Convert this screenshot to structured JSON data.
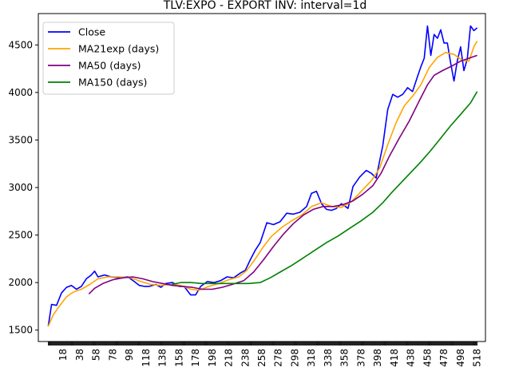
{
  "chart_data": {
    "type": "line",
    "title": "TLV:EXPO - EXPORT INV: interval=1d",
    "xlabel": "",
    "ylabel": "",
    "xlim": [
      -12,
      528
    ],
    "ylim": [
      1380,
      4830
    ],
    "x_ticks": [
      18,
      38,
      58,
      78,
      98,
      118,
      138,
      158,
      178,
      198,
      218,
      238,
      258,
      278,
      298,
      318,
      338,
      358,
      378,
      398,
      418,
      438,
      458,
      478,
      498,
      518
    ],
    "y_ticks": [
      1500,
      2000,
      2500,
      3000,
      3500,
      4000,
      4500
    ],
    "grid": false,
    "legend_position": "top-left",
    "series": [
      {
        "name": "Close",
        "color": "#0000ff",
        "points": [
          [
            0,
            1540
          ],
          [
            4,
            1770
          ],
          [
            10,
            1760
          ],
          [
            16,
            1890
          ],
          [
            22,
            1950
          ],
          [
            28,
            1970
          ],
          [
            34,
            1930
          ],
          [
            40,
            1960
          ],
          [
            46,
            2040
          ],
          [
            52,
            2080
          ],
          [
            56,
            2120
          ],
          [
            60,
            2060
          ],
          [
            68,
            2080
          ],
          [
            76,
            2060
          ],
          [
            86,
            2050
          ],
          [
            96,
            2060
          ],
          [
            104,
            2010
          ],
          [
            110,
            1970
          ],
          [
            116,
            1960
          ],
          [
            122,
            1960
          ],
          [
            130,
            1980
          ],
          [
            136,
            1950
          ],
          [
            142,
            1990
          ],
          [
            150,
            2000
          ],
          [
            158,
            1960
          ],
          [
            164,
            1960
          ],
          [
            172,
            1870
          ],
          [
            178,
            1870
          ],
          [
            184,
            1960
          ],
          [
            192,
            2010
          ],
          [
            200,
            2000
          ],
          [
            208,
            2020
          ],
          [
            216,
            2060
          ],
          [
            224,
            2050
          ],
          [
            232,
            2100
          ],
          [
            238,
            2130
          ],
          [
            244,
            2240
          ],
          [
            250,
            2340
          ],
          [
            256,
            2420
          ],
          [
            264,
            2630
          ],
          [
            272,
            2610
          ],
          [
            280,
            2640
          ],
          [
            288,
            2730
          ],
          [
            296,
            2720
          ],
          [
            304,
            2740
          ],
          [
            312,
            2800
          ],
          [
            318,
            2940
          ],
          [
            324,
            2960
          ],
          [
            330,
            2830
          ],
          [
            336,
            2770
          ],
          [
            342,
            2760
          ],
          [
            348,
            2780
          ],
          [
            354,
            2830
          ],
          [
            362,
            2780
          ],
          [
            368,
            3010
          ],
          [
            376,
            3110
          ],
          [
            384,
            3180
          ],
          [
            390,
            3150
          ],
          [
            396,
            3100
          ],
          [
            404,
            3440
          ],
          [
            410,
            3820
          ],
          [
            416,
            3980
          ],
          [
            422,
            3950
          ],
          [
            428,
            3980
          ],
          [
            434,
            4050
          ],
          [
            440,
            4010
          ],
          [
            446,
            4170
          ],
          [
            450,
            4270
          ],
          [
            454,
            4360
          ],
          [
            458,
            4700
          ],
          [
            462,
            4390
          ],
          [
            466,
            4610
          ],
          [
            470,
            4570
          ],
          [
            474,
            4660
          ],
          [
            478,
            4520
          ],
          [
            482,
            4520
          ],
          [
            486,
            4310
          ],
          [
            490,
            4120
          ],
          [
            494,
            4330
          ],
          [
            498,
            4480
          ],
          [
            502,
            4230
          ],
          [
            506,
            4350
          ],
          [
            510,
            4700
          ],
          [
            514,
            4650
          ],
          [
            518,
            4680
          ]
        ]
      },
      {
        "name": "MA21exp (days)",
        "color": "#ffa500",
        "points": [
          [
            0,
            1540
          ],
          [
            6,
            1660
          ],
          [
            14,
            1760
          ],
          [
            22,
            1850
          ],
          [
            30,
            1900
          ],
          [
            40,
            1930
          ],
          [
            50,
            1980
          ],
          [
            60,
            2040
          ],
          [
            72,
            2060
          ],
          [
            86,
            2060
          ],
          [
            100,
            2050
          ],
          [
            112,
            2010
          ],
          [
            124,
            1980
          ],
          [
            136,
            1970
          ],
          [
            148,
            1980
          ],
          [
            160,
            1970
          ],
          [
            172,
            1930
          ],
          [
            182,
            1920
          ],
          [
            194,
            1960
          ],
          [
            206,
            1990
          ],
          [
            218,
            2030
          ],
          [
            230,
            2060
          ],
          [
            240,
            2130
          ],
          [
            250,
            2250
          ],
          [
            260,
            2380
          ],
          [
            270,
            2490
          ],
          [
            282,
            2580
          ],
          [
            294,
            2650
          ],
          [
            306,
            2710
          ],
          [
            318,
            2800
          ],
          [
            330,
            2840
          ],
          [
            342,
            2800
          ],
          [
            354,
            2790
          ],
          [
            366,
            2850
          ],
          [
            378,
            2960
          ],
          [
            390,
            3070
          ],
          [
            400,
            3200
          ],
          [
            410,
            3450
          ],
          [
            420,
            3680
          ],
          [
            430,
            3860
          ],
          [
            440,
            3960
          ],
          [
            450,
            4080
          ],
          [
            460,
            4260
          ],
          [
            470,
            4370
          ],
          [
            480,
            4420
          ],
          [
            490,
            4400
          ],
          [
            500,
            4340
          ],
          [
            508,
            4330
          ],
          [
            514,
            4480
          ],
          [
            518,
            4540
          ]
        ]
      },
      {
        "name": "MA50 (days)",
        "color": "#800080",
        "points": [
          [
            49,
            1880
          ],
          [
            56,
            1940
          ],
          [
            66,
            1990
          ],
          [
            78,
            2030
          ],
          [
            90,
            2050
          ],
          [
            102,
            2060
          ],
          [
            114,
            2040
          ],
          [
            126,
            2010
          ],
          [
            138,
            1990
          ],
          [
            150,
            1970
          ],
          [
            162,
            1960
          ],
          [
            174,
            1950
          ],
          [
            186,
            1930
          ],
          [
            198,
            1930
          ],
          [
            210,
            1950
          ],
          [
            222,
            1980
          ],
          [
            236,
            2020
          ],
          [
            248,
            2110
          ],
          [
            260,
            2240
          ],
          [
            272,
            2380
          ],
          [
            284,
            2510
          ],
          [
            296,
            2620
          ],
          [
            308,
            2710
          ],
          [
            320,
            2770
          ],
          [
            332,
            2800
          ],
          [
            344,
            2800
          ],
          [
            356,
            2820
          ],
          [
            368,
            2860
          ],
          [
            380,
            2930
          ],
          [
            392,
            3020
          ],
          [
            402,
            3150
          ],
          [
            412,
            3330
          ],
          [
            424,
            3520
          ],
          [
            436,
            3700
          ],
          [
            448,
            3910
          ],
          [
            458,
            4080
          ],
          [
            466,
            4180
          ],
          [
            476,
            4230
          ],
          [
            488,
            4280
          ],
          [
            498,
            4330
          ],
          [
            508,
            4360
          ],
          [
            518,
            4390
          ]
        ]
      },
      {
        "name": "MA150 (days)",
        "color": "#008000",
        "points": [
          [
            149,
            1980
          ],
          [
            160,
            2000
          ],
          [
            172,
            2000
          ],
          [
            186,
            1990
          ],
          [
            200,
            1990
          ],
          [
            214,
            1990
          ],
          [
            228,
            1990
          ],
          [
            242,
            1990
          ],
          [
            256,
            2000
          ],
          [
            268,
            2050
          ],
          [
            280,
            2110
          ],
          [
            294,
            2180
          ],
          [
            308,
            2260
          ],
          [
            322,
            2340
          ],
          [
            336,
            2420
          ],
          [
            350,
            2490
          ],
          [
            364,
            2570
          ],
          [
            378,
            2650
          ],
          [
            392,
            2740
          ],
          [
            404,
            2840
          ],
          [
            414,
            2940
          ],
          [
            426,
            3050
          ],
          [
            438,
            3160
          ],
          [
            450,
            3270
          ],
          [
            462,
            3390
          ],
          [
            474,
            3520
          ],
          [
            486,
            3650
          ],
          [
            498,
            3770
          ],
          [
            510,
            3890
          ],
          [
            518,
            4010
          ]
        ]
      }
    ]
  }
}
